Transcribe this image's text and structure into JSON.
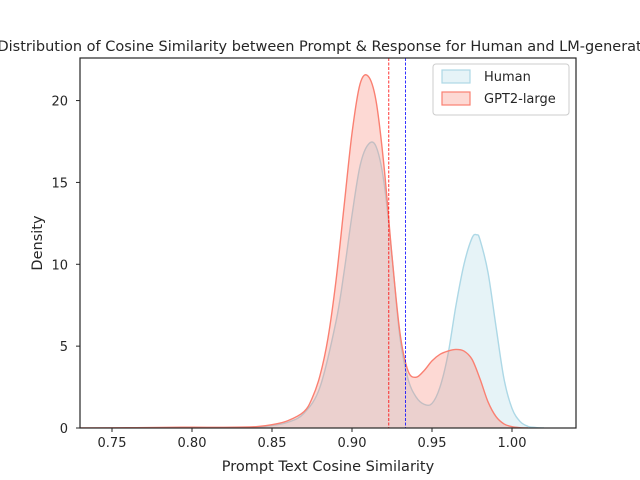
{
  "chart_data": {
    "type": "area",
    "title": "[Base] Distribution of Cosine Similarity between Prompt & Response for Human and LM-generated Text",
    "xlabel": "Prompt Text Cosine Similarity",
    "ylabel": "Density",
    "xlim": [
      0.73,
      1.04
    ],
    "ylim": [
      0,
      22.6
    ],
    "xticks": [
      0.75,
      0.8,
      0.85,
      0.9,
      0.95,
      1.0
    ],
    "xtick_labels": [
      "0.75",
      "0.80",
      "0.85",
      "0.90",
      "0.95",
      "1.00"
    ],
    "yticks": [
      0,
      5,
      10,
      15,
      20
    ],
    "ytick_labels": [
      "0",
      "5",
      "10",
      "15",
      "20"
    ],
    "grid": false,
    "legend_placement": "top-right",
    "series": [
      {
        "name": "Human",
        "color": "#add8e6",
        "fill_opacity": 0.3,
        "mean_line": 0.9335,
        "mean_line_color": "#0000ff",
        "x": [
          0.83,
          0.84,
          0.85,
          0.86,
          0.87,
          0.88,
          0.89,
          0.895,
          0.9,
          0.905,
          0.91,
          0.915,
          0.92,
          0.925,
          0.93,
          0.935,
          0.94,
          0.945,
          0.95,
          0.955,
          0.96,
          0.965,
          0.97,
          0.975,
          0.978,
          0.98,
          0.985,
          0.99,
          0.995,
          1.0,
          1.005,
          1.01,
          1.015,
          1.02
        ],
        "y": [
          0,
          0.05,
          0.15,
          0.35,
          0.9,
          2.5,
          6.5,
          9.5,
          13.0,
          16.0,
          17.3,
          17.2,
          15.0,
          10.5,
          5.5,
          3.0,
          1.9,
          1.45,
          1.5,
          2.5,
          4.5,
          7.5,
          10.0,
          11.6,
          11.8,
          11.5,
          9.5,
          6.2,
          3.0,
          1.2,
          0.4,
          0.1,
          0.03,
          0
        ]
      },
      {
        "name": "GPT2-large",
        "color": "#fa8072",
        "fill_opacity": 0.3,
        "mean_line": 0.923,
        "mean_line_color": "#ff0000",
        "x": [
          0.73,
          0.75,
          0.78,
          0.8,
          0.82,
          0.84,
          0.85,
          0.86,
          0.87,
          0.875,
          0.88,
          0.885,
          0.89,
          0.895,
          0.9,
          0.905,
          0.91,
          0.915,
          0.92,
          0.925,
          0.93,
          0.935,
          0.94,
          0.945,
          0.95,
          0.955,
          0.96,
          0.965,
          0.97,
          0.975,
          0.98,
          0.985,
          0.99,
          0.995,
          1.0,
          1.005,
          1.01
        ],
        "y": [
          0,
          0.01,
          0.03,
          0.05,
          0.04,
          0.08,
          0.2,
          0.45,
          1.0,
          1.8,
          3.2,
          5.5,
          9.0,
          13.5,
          18.0,
          21.0,
          21.5,
          20.0,
          16.0,
          10.5,
          5.8,
          3.5,
          3.1,
          3.5,
          4.1,
          4.5,
          4.7,
          4.8,
          4.7,
          4.2,
          3.0,
          1.6,
          0.7,
          0.25,
          0.08,
          0.02,
          0
        ]
      }
    ]
  }
}
